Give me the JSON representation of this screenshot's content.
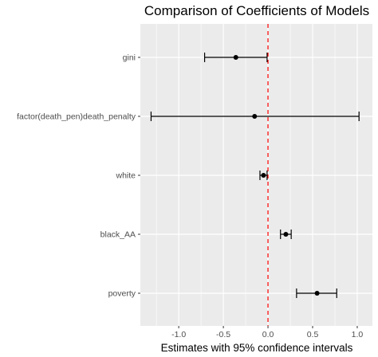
{
  "chart_data": {
    "type": "errorbar",
    "title": "Comparison of Coefficients of Models",
    "xlabel": "Estimates with 95% confidence intervals",
    "ylabel": "",
    "xlim": [
      -1.43,
      1.17
    ],
    "x_ticks": [
      -1.0,
      -0.5,
      0.0,
      0.5,
      1.0
    ],
    "x_tick_labels": [
      "-1.0",
      "-0.5",
      "0.0",
      "0.5",
      "1.0"
    ],
    "reference_line": {
      "x": 0,
      "style": "dashed",
      "color": "#ff0000"
    },
    "grid": true,
    "panel_background": "#ebebeb",
    "categories": [
      "gini",
      "factor(death_pen)death_penalty",
      "white",
      "black_AA",
      "poverty"
    ],
    "estimates": [
      -0.36,
      -0.15,
      -0.05,
      0.2,
      0.55
    ],
    "lower": [
      -0.71,
      -1.31,
      -0.09,
      0.14,
      0.32
    ],
    "upper": [
      -0.01,
      1.02,
      -0.01,
      0.26,
      0.77
    ]
  }
}
